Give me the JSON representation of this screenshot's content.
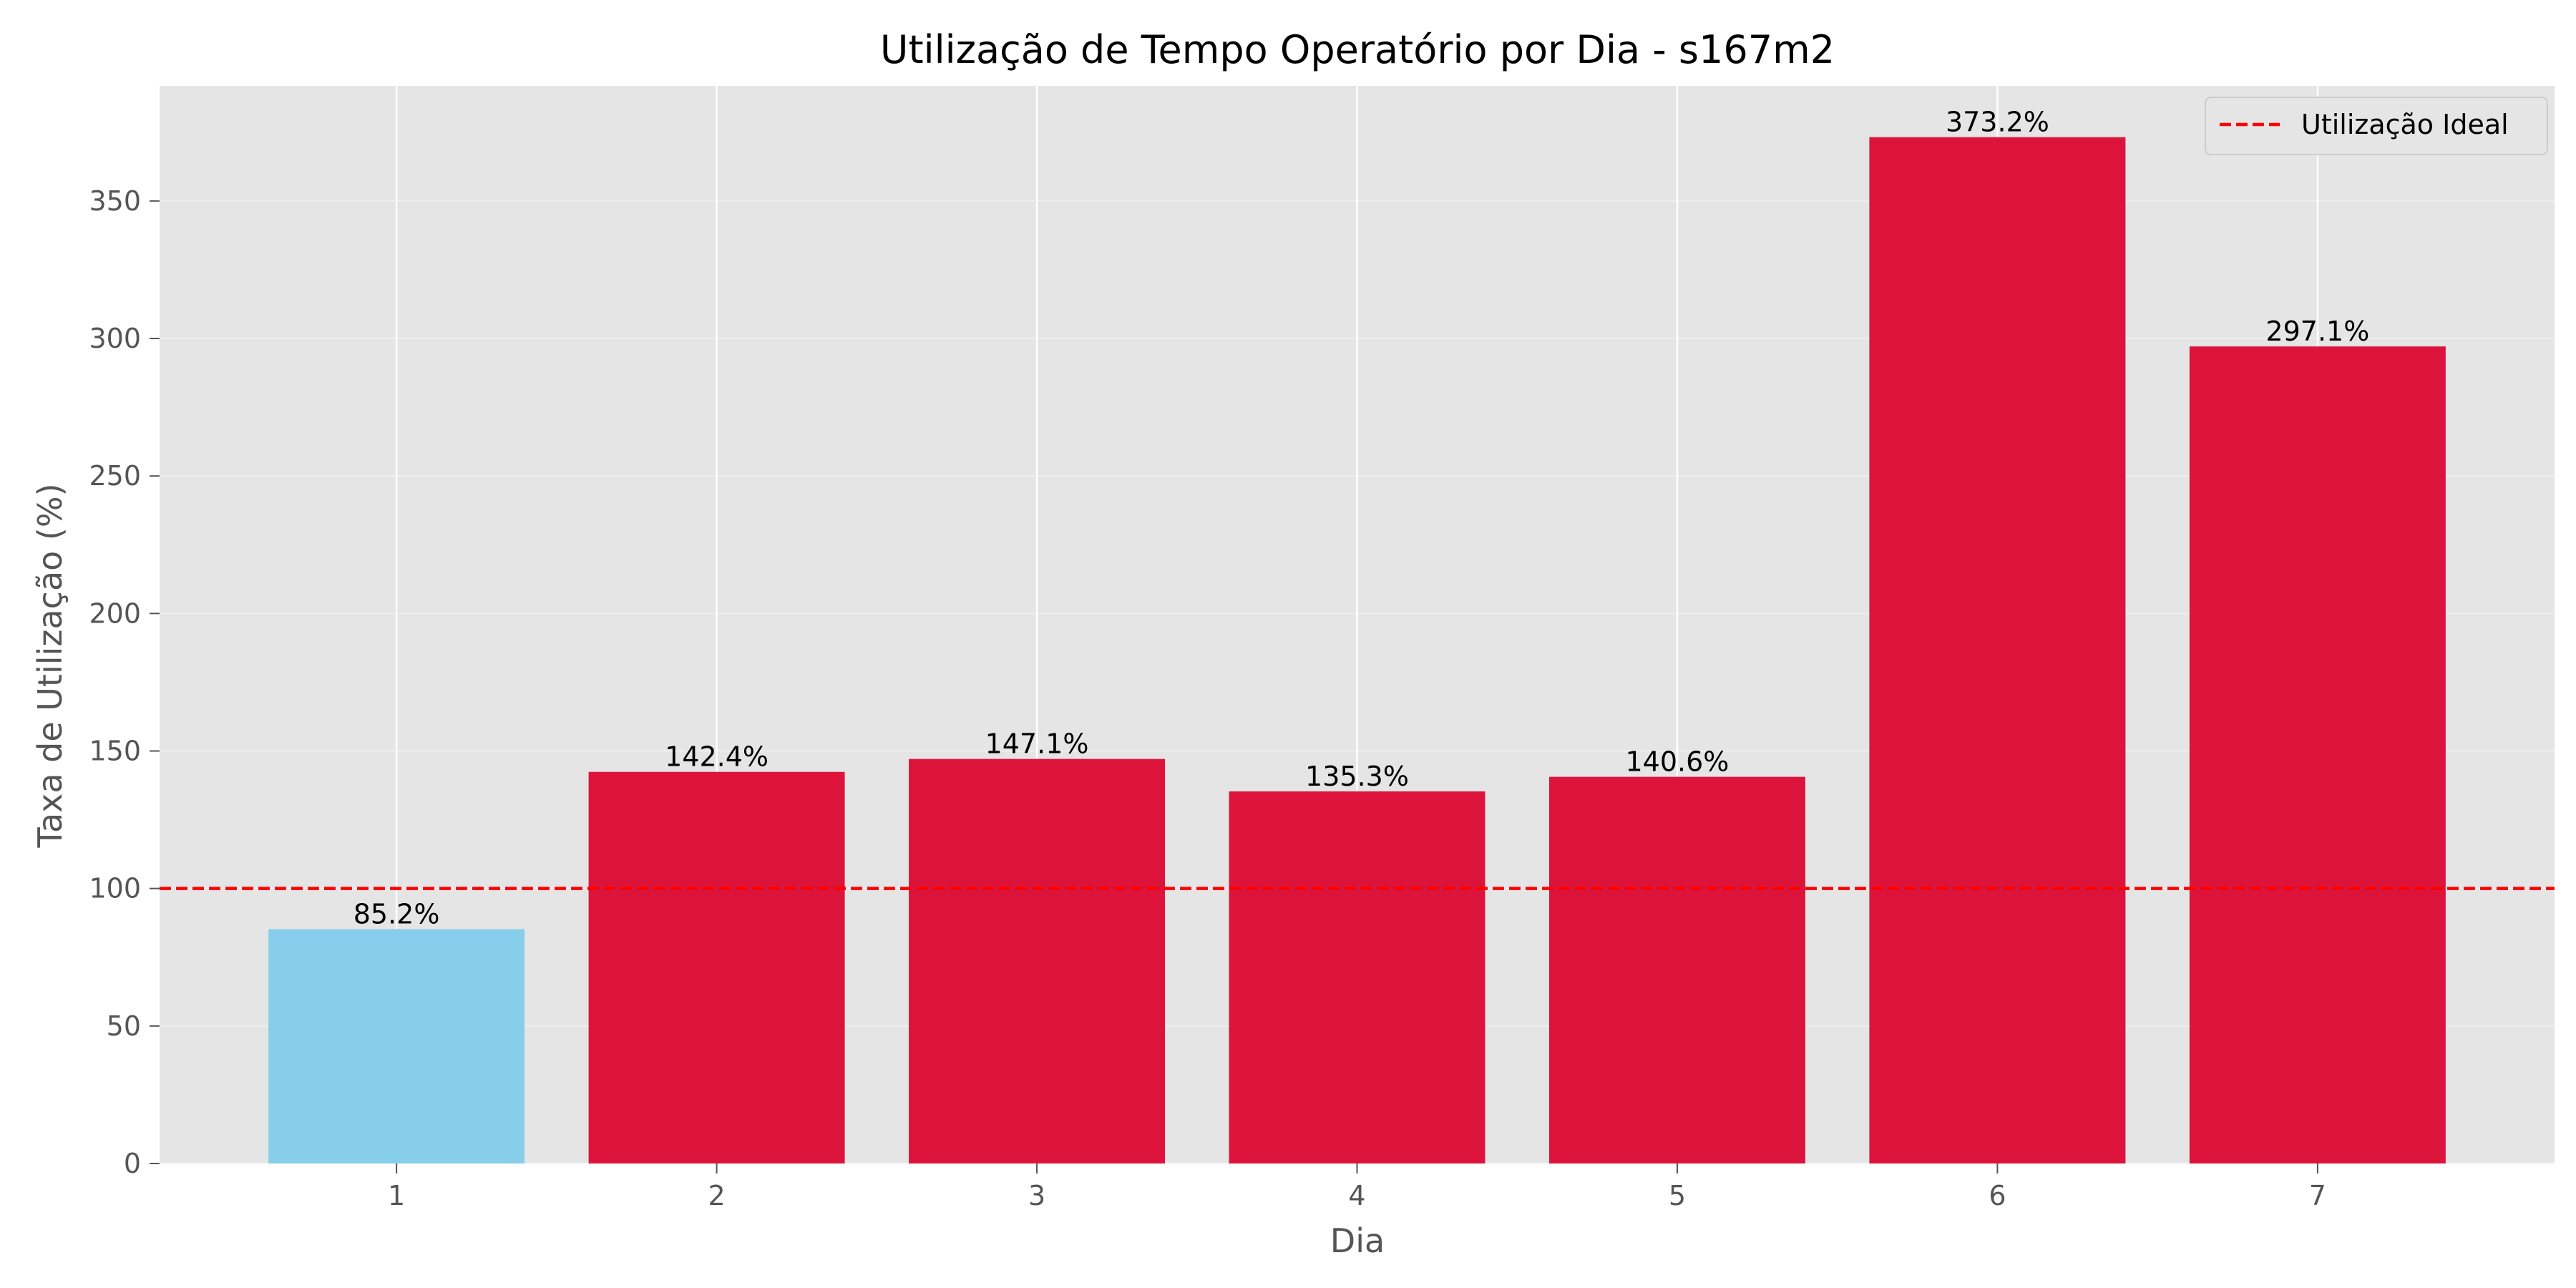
{
  "chart_data": {
    "type": "bar",
    "title": "Utilização de Tempo Operatório por Dia - s167m2",
    "xlabel": "Dia",
    "ylabel": "Taxa de Utilização (%)",
    "categories": [
      "1",
      "2",
      "3",
      "4",
      "5",
      "6",
      "7"
    ],
    "values": [
      85.2,
      142.4,
      147.1,
      135.3,
      140.6,
      373.2,
      297.1
    ],
    "data_labels": [
      "85.2%",
      "142.4%",
      "147.1%",
      "135.3%",
      "140.6%",
      "373.2%",
      "297.1%"
    ],
    "bar_colors": [
      "#87CEEB",
      "#DC143C",
      "#DC143C",
      "#DC143C",
      "#DC143C",
      "#DC143C",
      "#DC143C"
    ],
    "ylim": [
      0,
      391.86
    ],
    "xlim": [
      0.26,
      7.74
    ],
    "yticks": [
      0,
      50,
      100,
      150,
      200,
      250,
      300,
      350
    ],
    "reference_line": {
      "y": 100,
      "label": "Utilização Ideal",
      "color": "#FF0000",
      "style": "dashed"
    },
    "grid": true,
    "legend": "top-right",
    "colors": {
      "background": "#E5E5E5",
      "grid": "#FFFFFF"
    }
  }
}
